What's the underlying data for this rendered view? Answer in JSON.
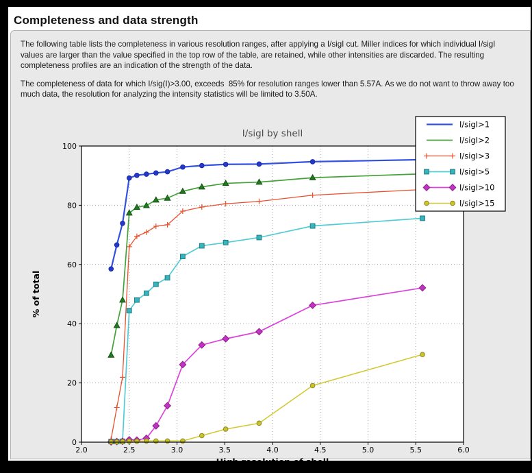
{
  "window": {
    "title": "Completeness and data strength"
  },
  "intro": {
    "paragraph1": "The following table lists the completeness in various resolution ranges, after applying a I/sigI cut. Miller indices for which individual I/sigI values are larger than the value specified in the top row of the table, are retained, while other intensities are discarded. The resulting completeness profiles are an indication of the strength of the data.",
    "paragraph2": "The completeness of data for which I/sig(I)>3.00, exceeds  85% for resolution ranges lower than 5.57A. As we do not want to throw away too much data, the resolution for analyzing the intensity statistics will be limited to 3.50A."
  },
  "chart_data": {
    "type": "line",
    "title": "I/sigI by shell",
    "xlabel": "High resolution of shell",
    "ylabel": "% of total",
    "xlim": [
      2.0,
      6.0
    ],
    "ylim": [
      0,
      100
    ],
    "xticks": [
      "2.0",
      "2.5",
      "3.0",
      "3.5",
      "4.0",
      "4.5",
      "5.0",
      "5.5",
      "6.0"
    ],
    "yticks": [
      "0",
      "20",
      "40",
      "60",
      "80",
      "100"
    ],
    "grid": true,
    "legend_position": "upper right",
    "title_color": "#4a4a4a",
    "x": [
      2.31,
      2.37,
      2.43,
      2.5,
      2.58,
      2.68,
      2.78,
      2.9,
      3.06,
      3.26,
      3.51,
      3.86,
      4.42,
      5.57
    ],
    "series": [
      {
        "name": "I/sigI>1",
        "line_color": "#3350e0",
        "marker": "circle",
        "marker_fill": "#2438cc",
        "marker_edge": "#1727a0",
        "line_width": 2.2,
        "values": [
          58.5,
          66.6,
          73.9,
          89.2,
          90.1,
          90.5,
          90.9,
          91.3,
          92.9,
          93.4,
          93.8,
          93.9,
          94.7,
          95.4
        ]
      },
      {
        "name": "I/sigI>2",
        "line_color": "#44a238",
        "marker": "triangle",
        "marker_fill": "#217a21",
        "marker_edge": "#145214",
        "line_width": 1.7,
        "values": [
          29.4,
          39.4,
          48.0,
          77.4,
          79.3,
          79.9,
          81.8,
          82.4,
          84.7,
          86.2,
          87.4,
          87.8,
          89.3,
          90.6
        ]
      },
      {
        "name": "I/sigI>3",
        "line_color": "#e8502e",
        "marker": "plus",
        "marker_fill": "#e8502e",
        "marker_edge": "#e8502e",
        "line_width": 1.3,
        "values": [
          1.0,
          11.7,
          21.9,
          66.0,
          69.5,
          70.9,
          72.9,
          73.4,
          78.0,
          79.4,
          80.5,
          81.3,
          83.4,
          85.3
        ]
      },
      {
        "name": "I/sigI>5",
        "line_color": "#52ccd4",
        "marker": "square",
        "marker_fill": "#3ab4bc",
        "marker_edge": "#1d7d84",
        "line_width": 1.7,
        "values": [
          0.2,
          0.2,
          0.3,
          44.4,
          48.0,
          50.3,
          53.3,
          55.5,
          62.7,
          66.3,
          67.4,
          69.1,
          73.0,
          75.6
        ]
      },
      {
        "name": "I/sigI>10",
        "line_color": "#d944d9",
        "marker": "diamond",
        "marker_fill": "#c233c2",
        "marker_edge": "#8d1f8d",
        "line_width": 1.7,
        "values": [
          0.1,
          0.2,
          0.3,
          0.8,
          0.7,
          1.3,
          5.5,
          12.3,
          26.2,
          32.8,
          34.9,
          37.3,
          46.2,
          52.1
        ]
      },
      {
        "name": "I/sigI>15",
        "line_color": "#d2c832",
        "marker": "circle",
        "marker_fill": "#ccc22e",
        "marker_edge": "#8a8a20",
        "line_width": 1.5,
        "values": [
          0.1,
          0.1,
          0.2,
          0.3,
          0.3,
          0.4,
          0.4,
          0.4,
          0.4,
          2.2,
          4.4,
          6.4,
          19.1,
          29.6
        ]
      }
    ]
  }
}
